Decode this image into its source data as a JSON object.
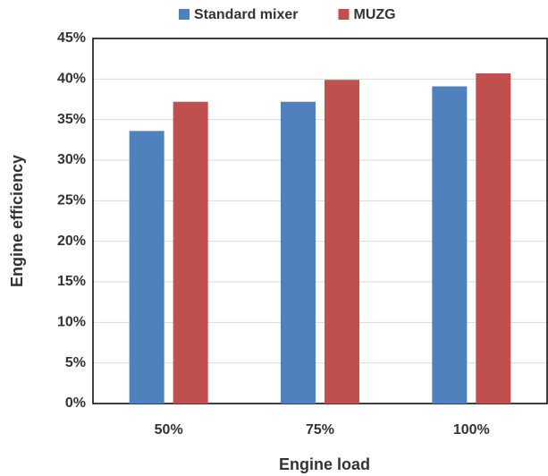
{
  "chart_data": {
    "type": "bar",
    "xlabel": "Engine load",
    "ylabel": "Engine efficiency",
    "categories": [
      "50%",
      "75%",
      "100%"
    ],
    "series": [
      {
        "name": "Standard mixer",
        "color": "#4f81bd",
        "values": [
          33.6,
          37.2,
          39.1
        ]
      },
      {
        "name": "MUZG",
        "color": "#c0504d",
        "values": [
          37.2,
          39.9,
          40.7
        ]
      }
    ],
    "ylim": [
      0,
      45
    ],
    "yticks": [
      {
        "value": 0,
        "label": "0%"
      },
      {
        "value": 5,
        "label": "5%"
      },
      {
        "value": 10,
        "label": "10%"
      },
      {
        "value": 15,
        "label": "15%"
      },
      {
        "value": 20,
        "label": "20%"
      },
      {
        "value": 25,
        "label": "25%"
      },
      {
        "value": 30,
        "label": "30%"
      },
      {
        "value": 35,
        "label": "35%"
      },
      {
        "value": 40,
        "label": "40%"
      },
      {
        "value": 45,
        "label": "45%"
      }
    ],
    "grid": true,
    "legend": "top"
  }
}
